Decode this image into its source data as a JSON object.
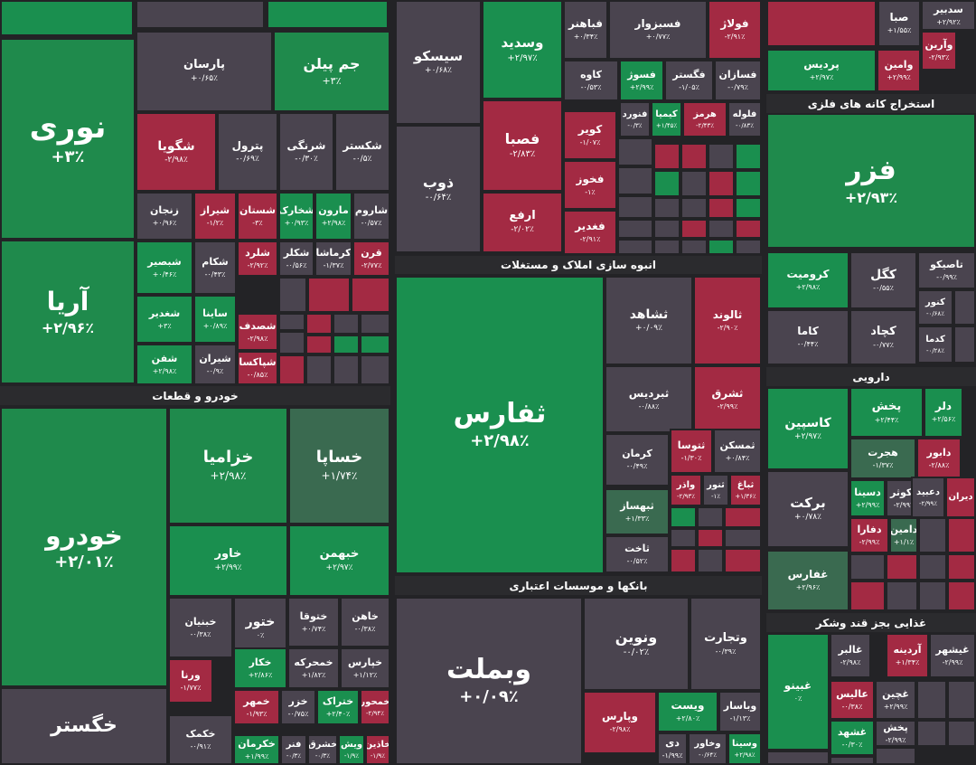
{
  "colors": {
    "up": "#1f8a4c",
    "up_strong": "#1a8f4f",
    "up_dim": "#3a6a50",
    "down": "#a32a43",
    "flat": "#4a444f",
    "background": "#232326",
    "header": "#2b2b2e"
  },
  "chart_data": {
    "type": "treemap",
    "sectors": [
      {
        "name": "خودرو و قطعات"
      },
      {
        "name": "انبوه سازی املاک و مستغلات"
      },
      {
        "name": "بانکها و موسسات اعتباری"
      },
      {
        "name": "استخراج کانه های فلزی"
      },
      {
        "name": "دارویی"
      },
      {
        "name": "غذایی بجز قند وشکر"
      }
    ],
    "tiles": [
      {
        "symbol": "نوری",
        "change": "+۳٪"
      },
      {
        "symbol": "آریا",
        "change": "+۲/۹۶٪"
      },
      {
        "symbol": "خودرو",
        "change": "+۲/۰۱٪"
      },
      {
        "symbol": "خگستر",
        "change": ""
      },
      {
        "symbol": "پارسان",
        "change": "+۰/۶۵٪"
      },
      {
        "symbol": "جم پیلن",
        "change": "+۳٪"
      },
      {
        "symbol": "شگویا",
        "change": "-۲/۹۸٪"
      },
      {
        "symbol": "پترول",
        "change": "-۰/۶۹٪"
      },
      {
        "symbol": "شرنگی",
        "change": "-۰/۳۰٪"
      },
      {
        "symbol": "شکستر",
        "change": "-۰/۵٪"
      },
      {
        "symbol": "زنجان",
        "change": "+۰/۹۶٪"
      },
      {
        "symbol": "شیراز",
        "change": "-۱/۲٪"
      },
      {
        "symbol": "شستان",
        "change": "-۳٪"
      },
      {
        "symbol": "شخارک",
        "change": "+۰/۹۳٪"
      },
      {
        "symbol": "مارون",
        "change": "+۲/۹۸٪"
      },
      {
        "symbol": "شاروم",
        "change": "-۰/۵۷٪"
      },
      {
        "symbol": "شبصیر",
        "change": "+۰/۴۶٪"
      },
      {
        "symbol": "شکام",
        "change": "-۰/۴۳٪"
      },
      {
        "symbol": "شلرد",
        "change": "-۲/۹۲٪"
      },
      {
        "symbol": "شکلر",
        "change": "-۰/۵۶٪"
      },
      {
        "symbol": "کرماشا",
        "change": "-۱/۳۷٪"
      },
      {
        "symbol": "قرن",
        "change": "-۲/۷۷٪"
      },
      {
        "symbol": "شغدیر",
        "change": "+۳٪"
      },
      {
        "symbol": "ساینا",
        "change": "+۰/۸۹٪"
      },
      {
        "symbol": "شصدف",
        "change": "-۲/۹۸٪"
      },
      {
        "symbol": "شفن",
        "change": "+۲/۹۸٪"
      },
      {
        "symbol": "شیران",
        "change": "-۰/۹٪"
      },
      {
        "symbol": "شپاکسا",
        "change": "-۰/۸۵٪"
      },
      {
        "symbol": "سیسکو",
        "change": "+۰/۶۸٪"
      },
      {
        "symbol": "ذوب",
        "change": "-۰/۶۴٪"
      },
      {
        "symbol": "وسدید",
        "change": "+۲/۹۷٪"
      },
      {
        "symbol": "فصبا",
        "change": "-۲/۸۳٪"
      },
      {
        "symbol": "ارفع",
        "change": "-۲/۰۲٪"
      },
      {
        "symbol": "فباهنر",
        "change": "+۰/۳۴٪"
      },
      {
        "symbol": "فسبزوار",
        "change": "+۰/۷۷٪"
      },
      {
        "symbol": "فولاژ",
        "change": "-۲/۹۱٪"
      },
      {
        "symbol": "کاوه",
        "change": "-۰/۵۳٪"
      },
      {
        "symbol": "فسوژ",
        "change": "+۲/۹۹٪"
      },
      {
        "symbol": "فگستر",
        "change": "-۱/۰۵٪"
      },
      {
        "symbol": "فسازان",
        "change": "-۰/۷۹٪"
      },
      {
        "symbol": "فنورد",
        "change": "-۰/۳٪"
      },
      {
        "symbol": "کیمیا",
        "change": "+۱/۴۵٪"
      },
      {
        "symbol": "هرمز",
        "change": "-۲/۴۳٪"
      },
      {
        "symbol": "فلوله",
        "change": "-۰/۸۳٪"
      },
      {
        "symbol": "کویر",
        "change": "-۱/۰۷٪"
      },
      {
        "symbol": "فخوز",
        "change": "-۱٪"
      },
      {
        "symbol": "فغدیر",
        "change": "-۲/۹۱٪"
      },
      {
        "symbol": "ثفارس",
        "change": "+۲/۹۸٪"
      },
      {
        "symbol": "ثشاهد",
        "change": "+۰/۰۹٪"
      },
      {
        "symbol": "ثالوند",
        "change": "-۲/۹۰٪"
      },
      {
        "symbol": "ثبردیس",
        "change": "-۰/۸۸٪"
      },
      {
        "symbol": "ثشرق",
        "change": "-۲/۹۹٪"
      },
      {
        "symbol": "کرمان",
        "change": "-۰/۴۹٪"
      },
      {
        "symbol": "ثتوسا",
        "change": "-۱/۳۰٪"
      },
      {
        "symbol": "ثمسکن",
        "change": "+۰/۸۴٪"
      },
      {
        "symbol": "واذر",
        "change": "-۲/۹۳٪"
      },
      {
        "symbol": "ثنور",
        "change": "-۱٪"
      },
      {
        "symbol": "ثباغ",
        "change": "+۱/۳۶٪"
      },
      {
        "symbol": "ثبهساز",
        "change": "+۱/۳۳٪"
      },
      {
        "symbol": "ثاخت",
        "change": "-۰/۵۲٪"
      },
      {
        "symbol": "خزامیا",
        "change": "+۲/۹۸٪"
      },
      {
        "symbol": "خساپا",
        "change": "+۱/۷۴٪"
      },
      {
        "symbol": "خاور",
        "change": "+۲/۹۹٪"
      },
      {
        "symbol": "خبهمن",
        "change": "+۲/۹۷٪"
      },
      {
        "symbol": "خبنیان",
        "change": "-۰/۳۸٪"
      },
      {
        "symbol": "ختور",
        "change": "۰٪"
      },
      {
        "symbol": "ختوقا",
        "change": "+۰/۷۴٪"
      },
      {
        "symbol": "خاهن",
        "change": "-۰/۳۸٪"
      },
      {
        "symbol": "خکار",
        "change": "+۲/۸۶٪"
      },
      {
        "symbol": "خمحرکه",
        "change": "+۱/۸۲٪"
      },
      {
        "symbol": "خپارس",
        "change": "+۱/۱۲٪"
      },
      {
        "symbol": "ورنا",
        "change": "-۱/۷۷٪"
      },
      {
        "symbol": "خمهر",
        "change": "-۱/۹۳٪"
      },
      {
        "symbol": "خزر",
        "change": "-۰/۷۵٪"
      },
      {
        "symbol": "ختراک",
        "change": "+۲/۴۰٪"
      },
      {
        "symbol": "خمحور",
        "change": "-۲/۹۴٪"
      },
      {
        "symbol": "خکمک",
        "change": "-۰/۹۱٪"
      },
      {
        "symbol": "خکرمان",
        "change": "+۱/۹۹٪"
      },
      {
        "symbol": "فنر",
        "change": "-۰/۳٪"
      },
      {
        "symbol": "خشرق",
        "change": "-۰/۳٪"
      },
      {
        "symbol": "ویش",
        "change": "-۱/۹٪"
      },
      {
        "symbol": "خاذین",
        "change": "-۱/۹٪"
      },
      {
        "symbol": "وبملت",
        "change": "+۰/۰۹٪"
      },
      {
        "symbol": "ونوین",
        "change": "-۰/۰۲٪"
      },
      {
        "symbol": "وتجارت",
        "change": "-۰/۳۹٪"
      },
      {
        "symbol": "وپارس",
        "change": "-۲/۹۸٪"
      },
      {
        "symbol": "ویست",
        "change": "+۲/۸۰٪"
      },
      {
        "symbol": "وباسار",
        "change": "-۱/۱۳٪"
      },
      {
        "symbol": "دی",
        "change": "-۱/۹۹٪"
      },
      {
        "symbol": "وخاور",
        "change": "-۰/۶۴٪"
      },
      {
        "symbol": "وسینا",
        "change": "+۲/۹۸٪"
      },
      {
        "symbol": "صبا",
        "change": "+۱/۵۵٪"
      },
      {
        "symbol": "وآرین",
        "change": "-۲/۹۳٪"
      },
      {
        "symbol": "سدبیر",
        "change": "+۲/۹۲٪"
      },
      {
        "symbol": "پردیس",
        "change": "+۲/۹۷٪"
      },
      {
        "symbol": "وامین",
        "change": "+۲/۹۹٪"
      },
      {
        "symbol": "فزر",
        "change": "+۲/۹۳٪"
      },
      {
        "symbol": "کرومیت",
        "change": "+۲/۹۸٪"
      },
      {
        "symbol": "کگل",
        "change": "-۰/۵۵٪"
      },
      {
        "symbol": "تاصیکو",
        "change": "-۰/۹۹٪"
      },
      {
        "symbol": "کنور",
        "change": "-۰/۶۸٪"
      },
      {
        "symbol": "کاما",
        "change": "-۰/۴۴٪"
      },
      {
        "symbol": "کچاد",
        "change": "-۰/۷۷٪"
      },
      {
        "symbol": "کدما",
        "change": "-۰/۲۸٪"
      },
      {
        "symbol": "کاسپین",
        "change": "+۲/۹۷٪"
      },
      {
        "symbol": "پخش",
        "change": "+۲/۴۴٪"
      },
      {
        "symbol": "دلر",
        "change": "+۲/۵۶٪"
      },
      {
        "symbol": "برکت",
        "change": "+۰/۷۸٪"
      },
      {
        "symbol": "هجرت",
        "change": "-۱/۳۷٪"
      },
      {
        "symbol": "دابور",
        "change": "-۲/۸۸٪"
      },
      {
        "symbol": "دسینا",
        "change": "+۲/۹۹٪"
      },
      {
        "symbol": "دکوثر",
        "change": "-۲/۹۹٪"
      },
      {
        "symbol": "دشیمی",
        "change": "-۱/۹٪"
      },
      {
        "symbol": "دفارا",
        "change": "-۲/۹۹٪"
      },
      {
        "symbol": "دامین",
        "change": "+۱/۱٪"
      },
      {
        "symbol": "غفارس",
        "change": "+۲/۹۶٪"
      },
      {
        "symbol": "غبینو",
        "change": "۰٪"
      },
      {
        "symbol": "غالبر",
        "change": "-۲/۹۸٪"
      },
      {
        "symbol": "آردینه",
        "change": "+۱/۳۴٪"
      },
      {
        "symbol": "غیشهر",
        "change": "-۲/۹۹٪"
      },
      {
        "symbol": "عالیس",
        "change": "-۰/۳۸٪"
      },
      {
        "symbol": "غچین",
        "change": "+۲/۹۹٪"
      },
      {
        "symbol": "غشهد",
        "change": "-۰/۳۰٪"
      },
      {
        "symbol": "پخش",
        "change": "-۲/۹۹٪"
      },
      {
        "symbol": "دعبید",
        "change": "-۲/۹۹٪"
      },
      {
        "symbol": "دیران",
        "change": ""
      }
    ]
  }
}
